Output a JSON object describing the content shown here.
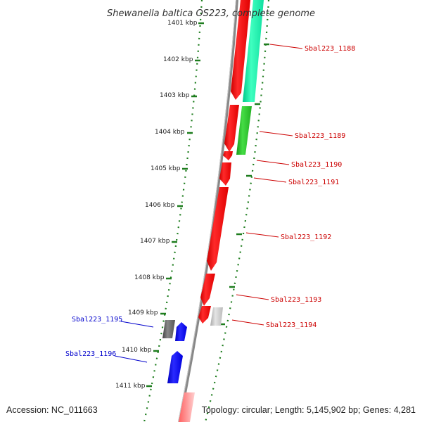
{
  "title": "Shewanella baltica OS223, complete genome",
  "footer": {
    "accession": "Accession: NC_011663",
    "topology": "Topology: circular; Length: 5,145,902 bp; Genes: 4,281"
  },
  "colors": {
    "ruler": "#1e7d1e",
    "backbone": "#888888",
    "forward_label": "#cc0000",
    "reverse_label": "#0000cc"
  },
  "ticks": [
    "1401 kbp",
    "1402 kbp",
    "1403 kbp",
    "1404 kbp",
    "1405 kbp",
    "1406 kbp",
    "1407 kbp",
    "1408 kbp",
    "1409 kbp",
    "1410 kbp",
    "1411 kbp"
  ],
  "gene_labels": {
    "g1188": "Sbal223_1188",
    "g1189": "Sbal223_1189",
    "g1190": "Sbal223_1190",
    "g1191": "Sbal223_1191",
    "g1192": "Sbal223_1192",
    "g1193": "Sbal223_1193",
    "g1194": "Sbal223_1194",
    "g1195": "Sbal223_1195",
    "g1196": "Sbal223_1196"
  }
}
